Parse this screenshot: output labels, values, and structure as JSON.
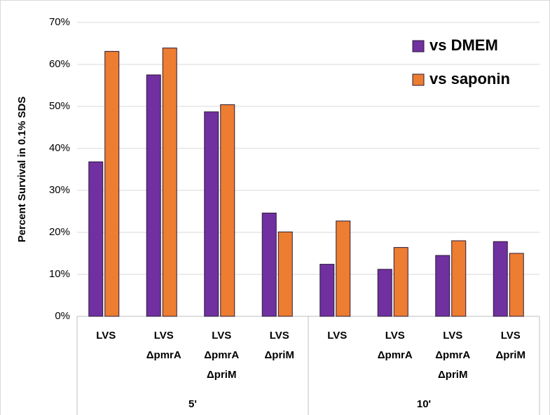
{
  "chart_data": {
    "type": "bar",
    "y_label": "Percent Survival in 0.1% SDS",
    "categories": [
      [
        "LVS"
      ],
      [
        "LVS",
        "ΔpmrA"
      ],
      [
        "LVS",
        "ΔpmrA",
        "ΔpriM"
      ],
      [
        "LVS",
        "ΔpriM"
      ],
      [
        "LVS"
      ],
      [
        "LVS",
        "ΔpmrA"
      ],
      [
        "LVS",
        "ΔpmrA",
        "ΔpriM"
      ],
      [
        "LVS",
        "ΔpriM"
      ]
    ],
    "group_labels": [
      "5'",
      "10'"
    ],
    "series": [
      {
        "name": "vs DMEM",
        "color": "#7030a0",
        "values": [
          36.8,
          57.5,
          48.7,
          24.6,
          12.4,
          11.2,
          14.5,
          17.8
        ]
      },
      {
        "name": "vs saponin",
        "color": "#ed7d31",
        "values": [
          63.1,
          63.9,
          50.4,
          20.1,
          22.7,
          16.4,
          18.0,
          15.0
        ]
      }
    ],
    "ylim": [
      0,
      70
    ],
    "yticks": [
      {
        "value": 0,
        "label": "0%"
      },
      {
        "value": 10,
        "label": "10%"
      },
      {
        "value": 20,
        "label": "20%"
      },
      {
        "value": 30,
        "label": "30%"
      },
      {
        "value": 40,
        "label": "40%"
      },
      {
        "value": 50,
        "label": "50%"
      },
      {
        "value": 60,
        "label": "60%"
      },
      {
        "value": 70,
        "label": "70%"
      }
    ],
    "grid": true,
    "legend": "upper right"
  }
}
